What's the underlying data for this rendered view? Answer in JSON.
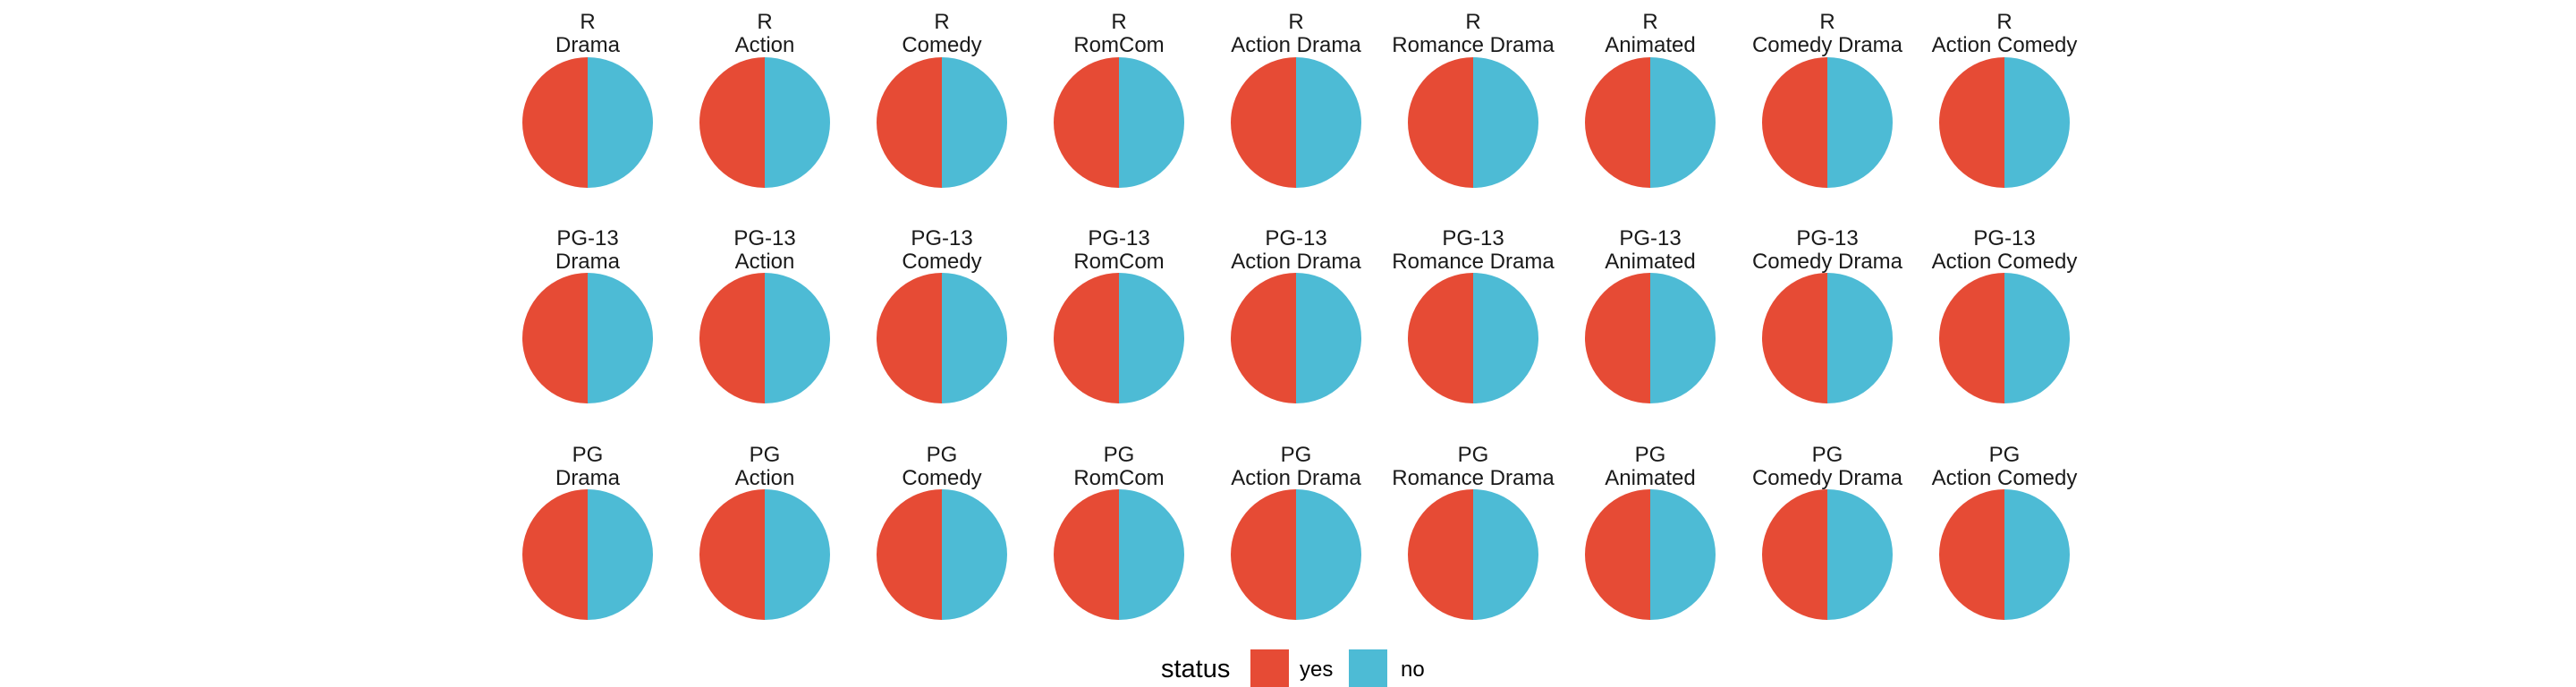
{
  "chart_data": {
    "type": "pie",
    "facet_rows": [
      "R",
      "PG-13",
      "PG"
    ],
    "facet_cols": [
      "Drama",
      "Action",
      "Comedy",
      "RomCom",
      "Action Drama",
      "Romance Drama",
      "Animated",
      "Comedy Drama",
      "Action Comedy"
    ],
    "slices": [
      {
        "name": "yes",
        "value": 0.5
      },
      {
        "name": "no",
        "value": 0.5
      }
    ],
    "legend": {
      "title": "status",
      "position": "bottom",
      "items": [
        "yes",
        "no"
      ]
    },
    "colors": {
      "yes": "#E64B35",
      "no": "#4DBBD5"
    },
    "title": "",
    "xlabel": "",
    "ylabel": "",
    "grid": false
  }
}
